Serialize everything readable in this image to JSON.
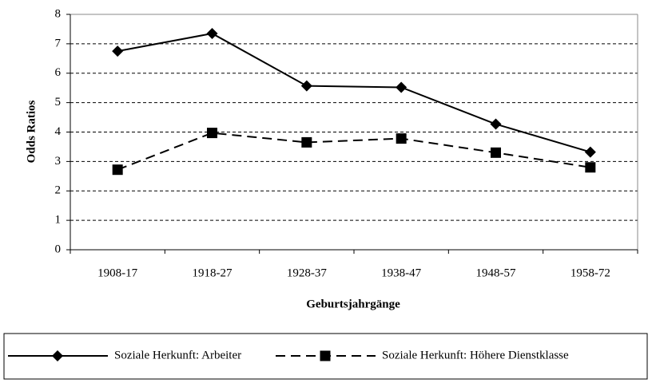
{
  "chart_data": {
    "type": "line",
    "x_label": "Geburtsjahrgänge",
    "y_label": "Odds Ratios",
    "categories": [
      "1908-17",
      "1918-27",
      "1928-37",
      "1938-47",
      "1948-57",
      "1958-72"
    ],
    "series": [
      {
        "name": "Soziale Herkunft: Arbeiter",
        "color": "#000000",
        "dash": "solid",
        "marker": "diamond",
        "values": [
          6.75,
          7.35,
          5.57,
          5.52,
          4.27,
          3.32
        ]
      },
      {
        "name": "Soziale Herkunft: Höhere Dienstklasse",
        "color": "#000000",
        "dash": "dashed",
        "marker": "square",
        "values": [
          2.72,
          3.97,
          3.65,
          3.78,
          3.3,
          2.8
        ]
      }
    ],
    "ylim": [
      0,
      8
    ],
    "yticks": [
      0,
      1,
      2,
      3,
      4,
      5,
      6,
      7,
      8
    ],
    "grid": true,
    "legend": "bottom"
  }
}
